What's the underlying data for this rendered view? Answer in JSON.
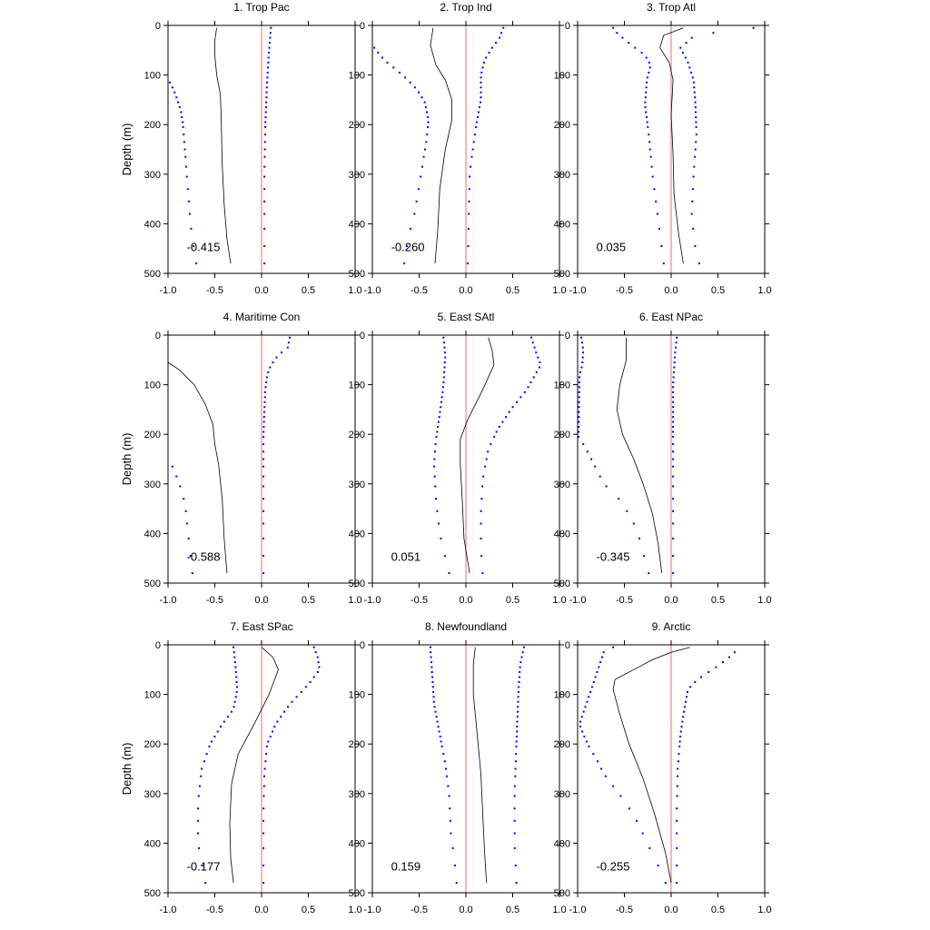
{
  "chart_data": {
    "type": "line",
    "ylabel": "Depth (m)",
    "xlim": [
      -1.0,
      1.0
    ],
    "ylim": [
      0,
      500
    ],
    "y_inverted": true,
    "x_ticks": [
      "-1.0",
      "-0.5",
      "0.0",
      "0.5",
      "1.0"
    ],
    "y_ticks": [
      "0",
      "100",
      "200",
      "300",
      "400",
      "500"
    ],
    "colors": {
      "reference": "#ff8080",
      "bounds": "#0000ff",
      "mean": "#000000"
    },
    "depths": [
      5,
      15,
      25,
      35,
      45,
      55,
      65,
      75,
      85,
      95,
      105,
      115,
      125,
      135,
      145,
      155,
      165,
      175,
      185,
      195,
      205,
      220,
      235,
      250,
      265,
      285,
      305,
      330,
      355,
      380,
      410,
      445,
      480
    ],
    "panels": [
      {
        "title": "1. Trop Pac",
        "correlation": "-0.415",
        "mean": [
          [
            -0.48,
            5
          ],
          [
            -0.5,
            30
          ],
          [
            -0.5,
            60
          ],
          [
            -0.48,
            100
          ],
          [
            -0.44,
            140
          ],
          [
            -0.43,
            200
          ],
          [
            -0.42,
            280
          ],
          [
            -0.4,
            360
          ],
          [
            -0.37,
            430
          ],
          [
            -0.33,
            480
          ]
        ],
        "upper": [
          [
            0.1,
            5
          ],
          [
            0.08,
            50
          ],
          [
            0.06,
            110
          ],
          [
            0.04,
            200
          ],
          [
            0.03,
            300
          ],
          [
            0.03,
            480
          ]
        ],
        "lower": [
          [
            -0.98,
            115
          ],
          [
            -0.94,
            130
          ],
          [
            -0.9,
            150
          ],
          [
            -0.86,
            175
          ],
          [
            -0.84,
            200
          ],
          [
            -0.82,
            250
          ],
          [
            -0.8,
            300
          ],
          [
            -0.78,
            350
          ],
          [
            -0.76,
            400
          ],
          [
            -0.7,
            480
          ]
        ]
      },
      {
        "title": "2. Trop Ind",
        "correlation": "-0.260",
        "mean": [
          [
            -0.35,
            5
          ],
          [
            -0.38,
            40
          ],
          [
            -0.32,
            80
          ],
          [
            -0.22,
            110
          ],
          [
            -0.15,
            150
          ],
          [
            -0.15,
            190
          ],
          [
            -0.22,
            250
          ],
          [
            -0.28,
            330
          ],
          [
            -0.3,
            410
          ],
          [
            -0.33,
            480
          ]
        ],
        "upper": [
          [
            0.4,
            5
          ],
          [
            0.36,
            25
          ],
          [
            0.28,
            45
          ],
          [
            0.2,
            70
          ],
          [
            0.16,
            100
          ],
          [
            0.16,
            150
          ],
          [
            0.12,
            190
          ],
          [
            0.08,
            240
          ],
          [
            0.04,
            300
          ],
          [
            0.02,
            480
          ]
        ],
        "lower": [
          [
            -0.98,
            45
          ],
          [
            -0.92,
            60
          ],
          [
            -0.84,
            75
          ],
          [
            -0.74,
            90
          ],
          [
            -0.62,
            110
          ],
          [
            -0.52,
            130
          ],
          [
            -0.44,
            155
          ],
          [
            -0.4,
            190
          ],
          [
            -0.42,
            230
          ],
          [
            -0.48,
            300
          ],
          [
            -0.55,
            380
          ],
          [
            -0.62,
            430
          ],
          [
            -0.66,
            480
          ]
        ]
      },
      {
        "title": "3. Trop Atl",
        "correlation": "0.035",
        "mean": [
          [
            0.13,
            5
          ],
          [
            -0.08,
            20
          ],
          [
            -0.12,
            45
          ],
          [
            -0.02,
            75
          ],
          [
            0.02,
            110
          ],
          [
            0.0,
            180
          ],
          [
            0.02,
            260
          ],
          [
            0.03,
            340
          ],
          [
            0.08,
            420
          ],
          [
            0.13,
            480
          ]
        ],
        "upper": [
          [
            0.88,
            5
          ],
          [
            0.45,
            15
          ],
          [
            0.22,
            25
          ],
          [
            0.1,
            45
          ],
          [
            0.18,
            75
          ],
          [
            0.24,
            110
          ],
          [
            0.26,
            160
          ],
          [
            0.27,
            220
          ],
          [
            0.24,
            300
          ],
          [
            0.22,
            380
          ],
          [
            0.25,
            440
          ],
          [
            0.3,
            480
          ]
        ],
        "lower": [
          [
            -0.62,
            5
          ],
          [
            -0.58,
            15
          ],
          [
            -0.52,
            25
          ],
          [
            -0.42,
            40
          ],
          [
            -0.28,
            60
          ],
          [
            -0.22,
            80
          ],
          [
            -0.26,
            110
          ],
          [
            -0.28,
            160
          ],
          [
            -0.24,
            220
          ],
          [
            -0.2,
            300
          ],
          [
            -0.16,
            360
          ],
          [
            -0.12,
            420
          ],
          [
            -0.08,
            480
          ]
        ]
      },
      {
        "title": "4. Maritime Con",
        "correlation": "-0.588",
        "mean": [
          [
            -1.0,
            55
          ],
          [
            -0.88,
            70
          ],
          [
            -0.72,
            100
          ],
          [
            -0.6,
            140
          ],
          [
            -0.52,
            180
          ],
          [
            -0.5,
            220
          ],
          [
            -0.46,
            260
          ],
          [
            -0.42,
            330
          ],
          [
            -0.4,
            410
          ],
          [
            -0.37,
            480
          ]
        ],
        "upper": [
          [
            0.3,
            5
          ],
          [
            0.28,
            25
          ],
          [
            0.18,
            40
          ],
          [
            0.1,
            60
          ],
          [
            0.06,
            80
          ],
          [
            0.04,
            110
          ],
          [
            0.03,
            150
          ],
          [
            0.02,
            200
          ],
          [
            0.02,
            300
          ],
          [
            0.02,
            480
          ]
        ],
        "lower": [
          [
            -0.98,
            255
          ],
          [
            -0.94,
            270
          ],
          [
            -0.9,
            290
          ],
          [
            -0.86,
            310
          ],
          [
            -0.82,
            340
          ],
          [
            -0.8,
            370
          ],
          [
            -0.78,
            410
          ],
          [
            -0.74,
            480
          ]
        ]
      },
      {
        "title": "5. East SAtl",
        "correlation": "0.051",
        "mean": [
          [
            0.24,
            5
          ],
          [
            0.28,
            30
          ],
          [
            0.3,
            60
          ],
          [
            0.18,
            110
          ],
          [
            0.02,
            170
          ],
          [
            -0.06,
            210
          ],
          [
            -0.06,
            260
          ],
          [
            -0.04,
            330
          ],
          [
            -0.02,
            410
          ],
          [
            0.04,
            480
          ]
        ],
        "upper": [
          [
            0.7,
            5
          ],
          [
            0.75,
            35
          ],
          [
            0.8,
            60
          ],
          [
            0.65,
            110
          ],
          [
            0.48,
            150
          ],
          [
            0.34,
            190
          ],
          [
            0.24,
            230
          ],
          [
            0.18,
            290
          ],
          [
            0.16,
            360
          ],
          [
            0.16,
            430
          ],
          [
            0.18,
            480
          ]
        ],
        "lower": [
          [
            -0.24,
            5
          ],
          [
            -0.22,
            40
          ],
          [
            -0.24,
            100
          ],
          [
            -0.28,
            160
          ],
          [
            -0.32,
            210
          ],
          [
            -0.34,
            260
          ],
          [
            -0.32,
            330
          ],
          [
            -0.28,
            400
          ],
          [
            -0.18,
            480
          ]
        ]
      },
      {
        "title": "6. East NPac",
        "correlation": "-0.345",
        "mean": [
          [
            -0.48,
            5
          ],
          [
            -0.48,
            50
          ],
          [
            -0.55,
            100
          ],
          [
            -0.58,
            150
          ],
          [
            -0.52,
            200
          ],
          [
            -0.4,
            250
          ],
          [
            -0.3,
            300
          ],
          [
            -0.2,
            360
          ],
          [
            -0.14,
            420
          ],
          [
            -0.1,
            480
          ]
        ],
        "upper": [
          [
            0.06,
            5
          ],
          [
            0.04,
            40
          ],
          [
            0.02,
            100
          ],
          [
            0.02,
            200
          ],
          [
            0.02,
            300
          ],
          [
            0.02,
            480
          ]
        ],
        "lower": [
          [
            -0.96,
            5
          ],
          [
            -0.94,
            30
          ],
          [
            -0.95,
            60
          ],
          [
            -0.98,
            80
          ],
          [
            -0.99,
            205
          ],
          [
            -0.94,
            220
          ],
          [
            -0.88,
            240
          ],
          [
            -0.8,
            270
          ],
          [
            -0.72,
            300
          ],
          [
            -0.56,
            330
          ],
          [
            -0.42,
            370
          ],
          [
            -0.34,
            410
          ],
          [
            -0.3,
            440
          ],
          [
            -0.24,
            480
          ]
        ]
      },
      {
        "title": "7. East SPac",
        "correlation": "-0.177",
        "mean": [
          [
            0.0,
            5
          ],
          [
            0.12,
            25
          ],
          [
            0.18,
            50
          ],
          [
            0.08,
            100
          ],
          [
            -0.08,
            160
          ],
          [
            -0.25,
            220
          ],
          [
            -0.32,
            280
          ],
          [
            -0.34,
            360
          ],
          [
            -0.33,
            430
          ],
          [
            -0.3,
            480
          ]
        ],
        "upper": [
          [
            0.56,
            5
          ],
          [
            0.6,
            25
          ],
          [
            0.62,
            50
          ],
          [
            0.5,
            80
          ],
          [
            0.3,
            120
          ],
          [
            0.15,
            160
          ],
          [
            0.06,
            200
          ],
          [
            0.03,
            260
          ],
          [
            0.02,
            340
          ],
          [
            0.02,
            480
          ]
        ],
        "lower": [
          [
            -0.3,
            5
          ],
          [
            -0.28,
            40
          ],
          [
            -0.26,
            90
          ],
          [
            -0.3,
            130
          ],
          [
            -0.42,
            160
          ],
          [
            -0.55,
            200
          ],
          [
            -0.64,
            250
          ],
          [
            -0.68,
            320
          ],
          [
            -0.68,
            400
          ],
          [
            -0.6,
            480
          ]
        ]
      },
      {
        "title": "8. Newfoundland",
        "correlation": "0.159",
        "mean": [
          [
            0.1,
            5
          ],
          [
            0.08,
            40
          ],
          [
            0.08,
            100
          ],
          [
            0.12,
            180
          ],
          [
            0.16,
            260
          ],
          [
            0.18,
            340
          ],
          [
            0.2,
            420
          ],
          [
            0.22,
            480
          ]
        ],
        "upper": [
          [
            0.62,
            5
          ],
          [
            0.58,
            40
          ],
          [
            0.56,
            100
          ],
          [
            0.54,
            200
          ],
          [
            0.52,
            300
          ],
          [
            0.52,
            400
          ],
          [
            0.54,
            480
          ]
        ],
        "lower": [
          [
            -0.38,
            5
          ],
          [
            -0.36,
            60
          ],
          [
            -0.34,
            120
          ],
          [
            -0.28,
            180
          ],
          [
            -0.22,
            240
          ],
          [
            -0.18,
            300
          ],
          [
            -0.16,
            380
          ],
          [
            -0.12,
            440
          ],
          [
            -0.1,
            480
          ]
        ]
      },
      {
        "title": "9. Arctic",
        "correlation": "-0.255",
        "mean": [
          [
            0.2,
            5
          ],
          [
            0.0,
            15
          ],
          [
            -0.2,
            30
          ],
          [
            -0.4,
            50
          ],
          [
            -0.6,
            70
          ],
          [
            -0.62,
            90
          ],
          [
            -0.55,
            140
          ],
          [
            -0.45,
            200
          ],
          [
            -0.3,
            270
          ],
          [
            -0.18,
            340
          ],
          [
            -0.06,
            420
          ],
          [
            0.0,
            480
          ]
        ],
        "upper": [
          [
            0.68,
            15
          ],
          [
            0.62,
            25
          ],
          [
            0.52,
            40
          ],
          [
            0.4,
            55
          ],
          [
            0.28,
            70
          ],
          [
            0.18,
            90
          ],
          [
            0.14,
            130
          ],
          [
            0.1,
            180
          ],
          [
            0.07,
            250
          ],
          [
            0.06,
            330
          ],
          [
            0.06,
            420
          ],
          [
            0.06,
            480
          ]
        ],
        "lower": [
          [
            -0.72,
            15
          ],
          [
            -0.62,
            5
          ],
          [
            -0.98,
            160
          ],
          [
            -0.94,
            180
          ],
          [
            -0.88,
            205
          ],
          [
            -0.8,
            230
          ],
          [
            -0.72,
            260
          ],
          [
            -0.6,
            290
          ],
          [
            -0.48,
            320
          ],
          [
            -0.38,
            350
          ],
          [
            -0.28,
            390
          ],
          [
            -0.18,
            430
          ],
          [
            -0.1,
            460
          ],
          [
            -0.06,
            480
          ]
        ]
      }
    ]
  }
}
